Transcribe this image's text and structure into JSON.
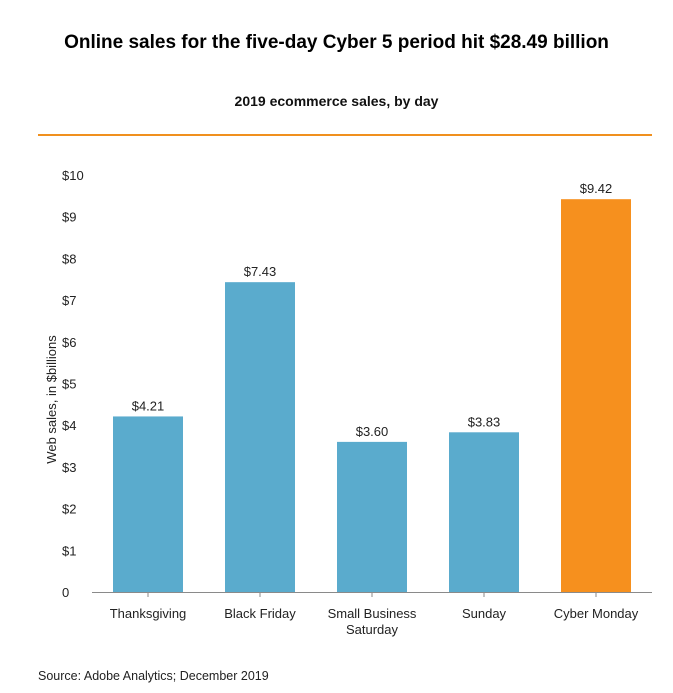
{
  "header": {
    "title": "Online sales for the five-day Cyber 5 period hit $28.49 billion",
    "subtitle": "2019 ecommerce sales, by day"
  },
  "footer": {
    "source": "Source: Adobe Analytics; December 2019"
  },
  "colors": {
    "bar_default": "#5aabcd",
    "bar_highlight": "#f6901e",
    "rule": "#f0901e"
  },
  "chart_data": {
    "type": "bar",
    "title": "2019 ecommerce sales, by day",
    "xlabel": "",
    "ylabel": "Web sales, in $billions",
    "ylim": [
      0,
      10
    ],
    "yticks": [
      0,
      1,
      2,
      3,
      4,
      5,
      6,
      7,
      8,
      9,
      10
    ],
    "ytick_labels": [
      "0",
      "$1",
      "$2",
      "$3",
      "$4",
      "$5",
      "$6",
      "$7",
      "$8",
      "$9",
      "$10"
    ],
    "grid": false,
    "categories": [
      [
        "Thanksgiving"
      ],
      [
        "Black Friday"
      ],
      [
        "Small Business",
        "Saturday"
      ],
      [
        "Sunday"
      ],
      [
        "Cyber Monday"
      ]
    ],
    "values": [
      4.21,
      7.43,
      3.6,
      3.83,
      9.42
    ],
    "value_labels": [
      "$4.21",
      "$7.43",
      "$3.60",
      "$3.83",
      "$9.42"
    ],
    "highlight_index": 4
  }
}
